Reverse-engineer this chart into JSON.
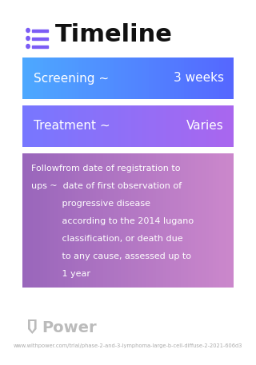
{
  "title": "Timeline",
  "title_icon_color": "#7B5CF5",
  "background_color": "#ffffff",
  "boxes": [
    {
      "label_left": "Screening ~",
      "label_right": "3 weeks",
      "color_left": "#4d9fff",
      "color_right": "#5577ff",
      "text_color": "#ffffff",
      "type": "simple"
    },
    {
      "label_left": "Treatment ~",
      "label_right": "Varies",
      "color_left": "#7d6fff",
      "color_right": "#9966ee",
      "text_color": "#ffffff",
      "type": "simple"
    },
    {
      "line1": "Followfrom date of registration to",
      "line2": "ups ~  date of first observation of",
      "line3": "           progressive disease",
      "line4": "           according to the 2014 lugano",
      "line5": "           classification, or death due",
      "line6": "           to any cause, assessed up to",
      "line7": "           1 year",
      "color_left": "#9966cc",
      "color_right": "#cc88dd",
      "text_color": "#ffffff",
      "type": "followup"
    }
  ],
  "footer_logo_text": "Power",
  "footer_url": "www.withpower.com/trial/phase-2-and-3-lymphoma-large-b-cell-diffuse-2-2021-606d3"
}
